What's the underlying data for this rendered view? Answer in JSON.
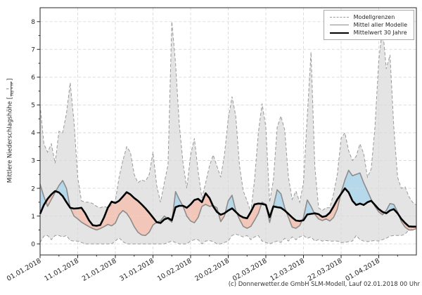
{
  "figure": {
    "footer_text": "(c) Donnerwetter.de GmbH SLM-Modell, Lauf 02.01.2018 00 Uhr"
  },
  "ylabel": {
    "text": "Mittlere Niederschlagshöhe",
    "bracket_open": "[",
    "bracket_close": "]",
    "unit_numerator": "l",
    "unit_denominator": "Tag × m²"
  },
  "legend": {
    "items": [
      {
        "label": "Modellgrenzen",
        "style": "dashed-gray"
      },
      {
        "label": "Mittel aller Modelle",
        "style": "solid-gray"
      },
      {
        "label": "Mittelwert 30 Jahre",
        "style": "solid-black-thick"
      }
    ]
  },
  "chart_data": {
    "type": "line",
    "title": "",
    "xlabel": "",
    "ylabel": "Mittlere Niederschlagshöhe [l/(Tag × m²)]",
    "grid": true,
    "legend_position": "upper right",
    "n_days": 101,
    "x_start": "01.01.2018",
    "x_tick_positions": [
      0,
      10,
      20,
      30,
      40,
      50,
      60,
      70,
      80,
      90
    ],
    "x_tick_labels": [
      "01.01.2018",
      "11.01.2018",
      "21.01.2018",
      "31.01.2018",
      "10.02.2018",
      "20.02.2018",
      "02.03.2018",
      "12.03.2018",
      "22.03.2018",
      "01.04.2018"
    ],
    "y_ticks": [
      0,
      1,
      2,
      3,
      4,
      5,
      6,
      7,
      8
    ],
    "ylim": [
      -0.4,
      8.5
    ],
    "series": [
      {
        "name": "Modellgrenzen (oberes Modellmaximum)",
        "values": [
          5.0,
          3.6,
          3.3,
          3.6,
          2.9,
          4.05,
          4.0,
          4.7,
          5.8,
          4.4,
          2.4,
          1.55,
          1.5,
          1.5,
          1.45,
          1.35,
          1.3,
          1.35,
          1.3,
          1.4,
          1.55,
          2.4,
          3.0,
          3.5,
          3.3,
          2.5,
          2.2,
          2.3,
          2.25,
          2.5,
          3.3,
          2.1,
          1.5,
          2.2,
          2.85,
          8.0,
          6.5,
          4.3,
          2.9,
          2.0,
          3.2,
          3.8,
          2.6,
          1.65,
          2.2,
          2.8,
          3.2,
          2.8,
          2.4,
          3.2,
          4.5,
          5.3,
          4.6,
          2.8,
          1.9,
          1.55,
          1.15,
          2.3,
          4.0,
          5.05,
          4.2,
          1.5,
          2.3,
          4.2,
          4.6,
          4.1,
          2.4,
          1.6,
          1.9,
          1.5,
          2.2,
          4.6,
          6.9,
          2.8,
          1.3,
          1.2,
          1.3,
          1.3,
          1.8,
          2.5,
          3.8,
          4.0,
          3.35,
          3.0,
          3.15,
          3.6,
          3.25,
          2.4,
          2.7,
          4.2,
          6.6,
          7.8,
          6.3,
          6.8,
          4.2,
          2.4,
          2.0,
          2.05,
          1.7,
          1.5,
          1.4
        ]
      },
      {
        "name": "Modellgrenzen (unteres Modellminimum)",
        "values": [
          0.05,
          0.28,
          0.3,
          0.15,
          0.3,
          0.3,
          0.25,
          0.3,
          0.12,
          0.1,
          0.1,
          0.05,
          0,
          0,
          0,
          0,
          0,
          0,
          0,
          0,
          0.1,
          0.22,
          0.08,
          0,
          0,
          0,
          0,
          0,
          0,
          0,
          0,
          0,
          0,
          0,
          0.05,
          0.1,
          0.05,
          0,
          0,
          0,
          0.1,
          0.15,
          0.15,
          0,
          0.1,
          0.12,
          0.08,
          0,
          0,
          0.05,
          0.1,
          0.3,
          0.35,
          0.3,
          0.25,
          0.3,
          0.15,
          0.25,
          0.3,
          0.1,
          0.05,
          0,
          0.05,
          0.1,
          0.05,
          0.2,
          0.1,
          0.25,
          0.15,
          0.25,
          0.3,
          0.2,
          0.25,
          0.1,
          0.15,
          0.1,
          0.12,
          0.1,
          0.1,
          0.1,
          0.05,
          0.05,
          0.08,
          0.1,
          0.3,
          0.15,
          0.1,
          0.08,
          0.1,
          0.12,
          0.1,
          0.15,
          0.2,
          0.28,
          0.3,
          0.3,
          0.3,
          0.35,
          0.5,
          0.52,
          0.55
        ]
      },
      {
        "name": "Mittel aller Modelle",
        "values": [
          2.15,
          1.7,
          1.35,
          1.6,
          1.85,
          2.1,
          2.28,
          2.0,
          1.3,
          1.0,
          0.9,
          0.78,
          0.7,
          0.62,
          0.55,
          0.5,
          0.55,
          0.62,
          0.7,
          0.65,
          0.75,
          1.05,
          1.2,
          1.1,
          0.9,
          0.62,
          0.42,
          0.32,
          0.3,
          0.42,
          0.68,
          0.78,
          0.83,
          1.0,
          0.9,
          0.78,
          1.88,
          1.6,
          1.35,
          1.0,
          0.82,
          0.76,
          0.95,
          1.35,
          1.42,
          1.35,
          1.38,
          1.3,
          0.8,
          1.0,
          1.55,
          1.75,
          1.2,
          0.88,
          0.63,
          0.56,
          0.63,
          0.85,
          1.1,
          1.5,
          1.42,
          0.77,
          1.35,
          1.95,
          1.8,
          1.3,
          0.95,
          0.6,
          0.56,
          0.66,
          0.95,
          1.58,
          1.35,
          1.07,
          0.9,
          0.84,
          0.9,
          0.82,
          0.95,
          1.25,
          1.85,
          2.3,
          2.65,
          2.45,
          2.5,
          2.55,
          2.2,
          1.9,
          1.6,
          1.35,
          1.15,
          1.05,
          1.2,
          1.45,
          1.42,
          1.15,
          0.8,
          0.6,
          0.5,
          0.5,
          0.55
        ]
      },
      {
        "name": "Mittelwert 30 Jahre",
        "values": [
          1.08,
          1.4,
          1.62,
          1.78,
          1.9,
          1.85,
          1.72,
          1.5,
          1.3,
          1.27,
          1.28,
          1.3,
          1.1,
          0.85,
          0.67,
          0.65,
          0.68,
          0.95,
          1.3,
          1.52,
          1.47,
          1.55,
          1.7,
          1.86,
          1.78,
          1.65,
          1.55,
          1.42,
          1.28,
          1.12,
          0.95,
          0.78,
          0.75,
          0.88,
          0.93,
          0.85,
          1.32,
          1.37,
          1.37,
          1.3,
          1.42,
          1.58,
          1.62,
          1.5,
          1.82,
          1.65,
          1.35,
          1.15,
          1.05,
          1.1,
          1.2,
          1.28,
          1.15,
          1.02,
          0.95,
          0.92,
          1.15,
          1.42,
          1.45,
          1.44,
          1.4,
          0.96,
          1.35,
          1.32,
          1.3,
          1.2,
          1.08,
          0.95,
          0.84,
          0.82,
          0.85,
          1.06,
          1.08,
          1.1,
          1.07,
          0.97,
          1.0,
          1.12,
          1.35,
          1.6,
          1.8,
          2.0,
          1.85,
          1.55,
          1.4,
          1.45,
          1.4,
          1.5,
          1.55,
          1.4,
          1.25,
          1.15,
          1.1,
          1.2,
          1.25,
          1.1,
          0.9,
          0.75,
          0.63,
          0.62,
          0.62
        ]
      }
    ],
    "fills": {
      "band_between": [
        "Modellgrenzen (oberes Modellmaximum)",
        "Modellgrenzen (unteres Modellminimum)"
      ],
      "above_normal_color_meaning": "Mittel aller Modelle über Mittelwert 30 Jahre",
      "below_normal_color_meaning": "Mittel aller Modelle unter Mittelwert 30 Jahre"
    }
  },
  "colors": {
    "band": "#e4e4e4",
    "band_edge": "#999999",
    "mean_line": "#8c8c8c",
    "normal_line": "#000000",
    "fill_above": "#b5d8ea",
    "fill_below": "#f2c7ba",
    "grid": "#d9d9d9",
    "spine": "#262626",
    "tick_label": "#262626",
    "background": "#ffffff"
  }
}
